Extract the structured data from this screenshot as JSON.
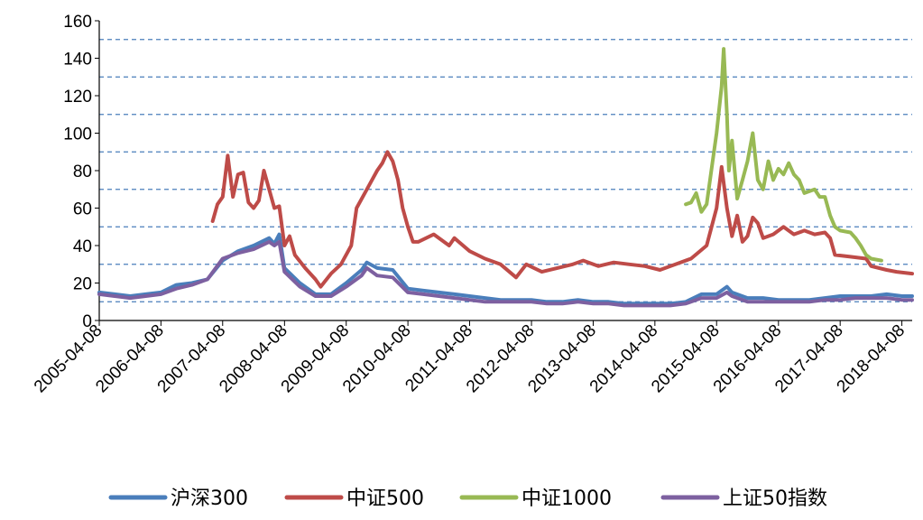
{
  "chart_data": {
    "type": "line",
    "title": "",
    "xlabel": "",
    "ylabel": "",
    "ylim": [
      0,
      160
    ],
    "y_ticks": [
      0,
      20,
      40,
      60,
      80,
      100,
      120,
      140,
      160
    ],
    "y_tick_labels": [
      "0",
      "20",
      "40",
      "60",
      "80",
      "100",
      "120",
      "140",
      "160"
    ],
    "gridlines": [
      10,
      30,
      50,
      70,
      90,
      110,
      130,
      150
    ],
    "grid": "dashed horizontal",
    "x_range": [
      "2005-04-08",
      "2018-06-08"
    ],
    "x_tick_labels": [
      "2005-04-08",
      "2006-04-08",
      "2007-04-08",
      "2008-04-08",
      "2009-04-08",
      "2010-04-08",
      "2011-04-08",
      "2012-04-08",
      "2013-04-08",
      "2014-04-08",
      "2015-04-08",
      "2016-04-08",
      "2017-04-08",
      "2018-04-08"
    ],
    "legend_position": "bottom",
    "series": [
      {
        "name": "沪深300",
        "color": "#4a7ebb",
        "points": [
          [
            "2005-04-08",
            15
          ],
          [
            "2005-07-08",
            14
          ],
          [
            "2005-10-08",
            13
          ],
          [
            "2006-01-08",
            14
          ],
          [
            "2006-04-08",
            15
          ],
          [
            "2006-07-08",
            19
          ],
          [
            "2006-10-08",
            20
          ],
          [
            "2007-01-08",
            22
          ],
          [
            "2007-04-08",
            32
          ],
          [
            "2007-07-08",
            37
          ],
          [
            "2007-10-08",
            40
          ],
          [
            "2008-01-08",
            44
          ],
          [
            "2008-02-08",
            41
          ],
          [
            "2008-03-08",
            46
          ],
          [
            "2008-04-08",
            28
          ],
          [
            "2008-07-08",
            20
          ],
          [
            "2008-10-08",
            14
          ],
          [
            "2009-01-08",
            14
          ],
          [
            "2009-04-08",
            20
          ],
          [
            "2009-07-08",
            27
          ],
          [
            "2009-08-08",
            31
          ],
          [
            "2009-10-08",
            28
          ],
          [
            "2010-01-08",
            27
          ],
          [
            "2010-04-08",
            17
          ],
          [
            "2010-07-08",
            16
          ],
          [
            "2010-10-08",
            15
          ],
          [
            "2011-01-08",
            14
          ],
          [
            "2011-04-08",
            13
          ],
          [
            "2011-07-08",
            12
          ],
          [
            "2011-10-08",
            11
          ],
          [
            "2012-01-08",
            11
          ],
          [
            "2012-04-08",
            11
          ],
          [
            "2012-07-08",
            10
          ],
          [
            "2012-10-08",
            10
          ],
          [
            "2013-01-08",
            11
          ],
          [
            "2013-04-08",
            10
          ],
          [
            "2013-07-08",
            10
          ],
          [
            "2013-10-08",
            9
          ],
          [
            "2014-01-08",
            9
          ],
          [
            "2014-04-08",
            9
          ],
          [
            "2014-07-08",
            9
          ],
          [
            "2014-10-08",
            10
          ],
          [
            "2015-01-08",
            14
          ],
          [
            "2015-04-08",
            14
          ],
          [
            "2015-06-08",
            18
          ],
          [
            "2015-07-08",
            15
          ],
          [
            "2015-10-08",
            12
          ],
          [
            "2016-01-08",
            12
          ],
          [
            "2016-04-08",
            11
          ],
          [
            "2016-07-08",
            11
          ],
          [
            "2016-10-08",
            11
          ],
          [
            "2017-01-08",
            12
          ],
          [
            "2017-04-08",
            13
          ],
          [
            "2017-07-08",
            13
          ],
          [
            "2017-10-08",
            13
          ],
          [
            "2018-01-08",
            14
          ],
          [
            "2018-04-08",
            13
          ],
          [
            "2018-06-08",
            13
          ]
        ]
      },
      {
        "name": "中证500",
        "color": "#be4b48",
        "points": [
          [
            "2007-02-08",
            53
          ],
          [
            "2007-03-08",
            62
          ],
          [
            "2007-04-08",
            66
          ],
          [
            "2007-05-08",
            88
          ],
          [
            "2007-06-08",
            66
          ],
          [
            "2007-07-08",
            78
          ],
          [
            "2007-08-08",
            79
          ],
          [
            "2007-09-08",
            63
          ],
          [
            "2007-10-08",
            60
          ],
          [
            "2007-11-08",
            64
          ],
          [
            "2007-12-08",
            80
          ],
          [
            "2008-01-08",
            70
          ],
          [
            "2008-02-08",
            60
          ],
          [
            "2008-03-08",
            61
          ],
          [
            "2008-04-08",
            40
          ],
          [
            "2008-05-08",
            45
          ],
          [
            "2008-06-08",
            35
          ],
          [
            "2008-08-08",
            28
          ],
          [
            "2008-10-08",
            22
          ],
          [
            "2008-11-08",
            18
          ],
          [
            "2009-01-08",
            25
          ],
          [
            "2009-03-08",
            30
          ],
          [
            "2009-05-08",
            40
          ],
          [
            "2009-06-08",
            60
          ],
          [
            "2009-08-08",
            70
          ],
          [
            "2009-10-08",
            80
          ],
          [
            "2009-11-08",
            84
          ],
          [
            "2009-12-08",
            90
          ],
          [
            "2010-01-08",
            85
          ],
          [
            "2010-02-08",
            75
          ],
          [
            "2010-03-08",
            60
          ],
          [
            "2010-04-08",
            50
          ],
          [
            "2010-05-08",
            42
          ],
          [
            "2010-06-08",
            42
          ],
          [
            "2010-09-08",
            46
          ],
          [
            "2010-12-08",
            40
          ],
          [
            "2011-01-08",
            44
          ],
          [
            "2011-04-08",
            37
          ],
          [
            "2011-07-08",
            33
          ],
          [
            "2011-10-08",
            30
          ],
          [
            "2012-01-08",
            23
          ],
          [
            "2012-03-08",
            30
          ],
          [
            "2012-06-08",
            26
          ],
          [
            "2012-09-08",
            28
          ],
          [
            "2012-12-08",
            30
          ],
          [
            "2013-02-08",
            32
          ],
          [
            "2013-05-08",
            29
          ],
          [
            "2013-08-08",
            31
          ],
          [
            "2013-11-08",
            30
          ],
          [
            "2014-02-08",
            29
          ],
          [
            "2014-05-08",
            27
          ],
          [
            "2014-08-08",
            30
          ],
          [
            "2014-11-08",
            33
          ],
          [
            "2015-02-08",
            40
          ],
          [
            "2015-04-08",
            60
          ],
          [
            "2015-05-08",
            82
          ],
          [
            "2015-06-08",
            60
          ],
          [
            "2015-07-08",
            45
          ],
          [
            "2015-08-08",
            56
          ],
          [
            "2015-09-08",
            42
          ],
          [
            "2015-10-08",
            45
          ],
          [
            "2015-11-08",
            55
          ],
          [
            "2015-12-08",
            52
          ],
          [
            "2016-01-08",
            44
          ],
          [
            "2016-03-08",
            46
          ],
          [
            "2016-05-08",
            50
          ],
          [
            "2016-07-08",
            46
          ],
          [
            "2016-09-08",
            48
          ],
          [
            "2016-11-08",
            46
          ],
          [
            "2017-01-08",
            47
          ],
          [
            "2017-02-08",
            44
          ],
          [
            "2017-03-08",
            35
          ],
          [
            "2017-06-08",
            34
          ],
          [
            "2017-09-08",
            33
          ],
          [
            "2017-10-08",
            29
          ],
          [
            "2018-01-08",
            27
          ],
          [
            "2018-03-08",
            26
          ],
          [
            "2018-06-08",
            25
          ]
        ]
      },
      {
        "name": "中证1000",
        "color": "#98b954",
        "points": [
          [
            "2014-10-08",
            62
          ],
          [
            "2014-11-08",
            63
          ],
          [
            "2014-12-08",
            68
          ],
          [
            "2015-01-08",
            58
          ],
          [
            "2015-02-08",
            62
          ],
          [
            "2015-03-08",
            80
          ],
          [
            "2015-04-08",
            100
          ],
          [
            "2015-05-08",
            125
          ],
          [
            "2015-05-20",
            145
          ],
          [
            "2015-06-08",
            110
          ],
          [
            "2015-06-20",
            80
          ],
          [
            "2015-07-08",
            96
          ],
          [
            "2015-08-08",
            65
          ],
          [
            "2015-09-08",
            75
          ],
          [
            "2015-10-08",
            85
          ],
          [
            "2015-11-08",
            100
          ],
          [
            "2015-12-08",
            75
          ],
          [
            "2016-01-08",
            70
          ],
          [
            "2016-02-08",
            85
          ],
          [
            "2016-03-08",
            75
          ],
          [
            "2016-04-08",
            81
          ],
          [
            "2016-05-08",
            78
          ],
          [
            "2016-06-08",
            84
          ],
          [
            "2016-07-08",
            78
          ],
          [
            "2016-08-08",
            75
          ],
          [
            "2016-09-08",
            68
          ],
          [
            "2016-11-08",
            70
          ],
          [
            "2016-12-08",
            66
          ],
          [
            "2017-01-08",
            66
          ],
          [
            "2017-02-08",
            56
          ],
          [
            "2017-03-08",
            50
          ],
          [
            "2017-04-08",
            48
          ],
          [
            "2017-06-08",
            47
          ],
          [
            "2017-07-08",
            44
          ],
          [
            "2017-08-08",
            40
          ],
          [
            "2017-09-08",
            35
          ],
          [
            "2017-10-08",
            33
          ],
          [
            "2017-12-08",
            32
          ]
        ]
      },
      {
        "name": "上证50指数",
        "color": "#7d60a0",
        "points": [
          [
            "2005-04-08",
            14
          ],
          [
            "2005-07-08",
            13
          ],
          [
            "2005-10-08",
            12
          ],
          [
            "2006-01-08",
            13
          ],
          [
            "2006-04-08",
            14
          ],
          [
            "2006-07-08",
            17
          ],
          [
            "2006-10-08",
            19
          ],
          [
            "2007-01-08",
            22
          ],
          [
            "2007-04-08",
            33
          ],
          [
            "2007-07-08",
            36
          ],
          [
            "2007-10-08",
            38
          ],
          [
            "2008-01-08",
            42
          ],
          [
            "2008-02-08",
            40
          ],
          [
            "2008-03-08",
            42
          ],
          [
            "2008-04-08",
            26
          ],
          [
            "2008-07-08",
            18
          ],
          [
            "2008-10-08",
            13
          ],
          [
            "2009-01-08",
            13
          ],
          [
            "2009-04-08",
            18
          ],
          [
            "2009-07-08",
            24
          ],
          [
            "2009-08-08",
            28
          ],
          [
            "2009-10-08",
            24
          ],
          [
            "2010-01-08",
            23
          ],
          [
            "2010-04-08",
            15
          ],
          [
            "2010-07-08",
            14
          ],
          [
            "2010-10-08",
            13
          ],
          [
            "2011-01-08",
            12
          ],
          [
            "2011-04-08",
            11
          ],
          [
            "2011-07-08",
            10
          ],
          [
            "2011-10-08",
            10
          ],
          [
            "2012-01-08",
            10
          ],
          [
            "2012-04-08",
            10
          ],
          [
            "2012-07-08",
            9
          ],
          [
            "2012-10-08",
            9
          ],
          [
            "2013-01-08",
            10
          ],
          [
            "2013-04-08",
            9
          ],
          [
            "2013-07-08",
            9
          ],
          [
            "2013-10-08",
            8
          ],
          [
            "2014-01-08",
            8
          ],
          [
            "2014-04-08",
            8
          ],
          [
            "2014-07-08",
            8
          ],
          [
            "2014-10-08",
            9
          ],
          [
            "2015-01-08",
            12
          ],
          [
            "2015-04-08",
            12
          ],
          [
            "2015-06-08",
            15
          ],
          [
            "2015-07-08",
            13
          ],
          [
            "2015-10-08",
            10
          ],
          [
            "2016-01-08",
            10
          ],
          [
            "2016-04-08",
            10
          ],
          [
            "2016-07-08",
            10
          ],
          [
            "2016-10-08",
            10
          ],
          [
            "2017-01-08",
            11
          ],
          [
            "2017-04-08",
            11
          ],
          [
            "2017-07-08",
            12
          ],
          [
            "2017-10-08",
            12
          ],
          [
            "2018-01-08",
            12
          ],
          [
            "2018-04-08",
            11
          ],
          [
            "2018-06-08",
            11
          ]
        ]
      }
    ]
  }
}
